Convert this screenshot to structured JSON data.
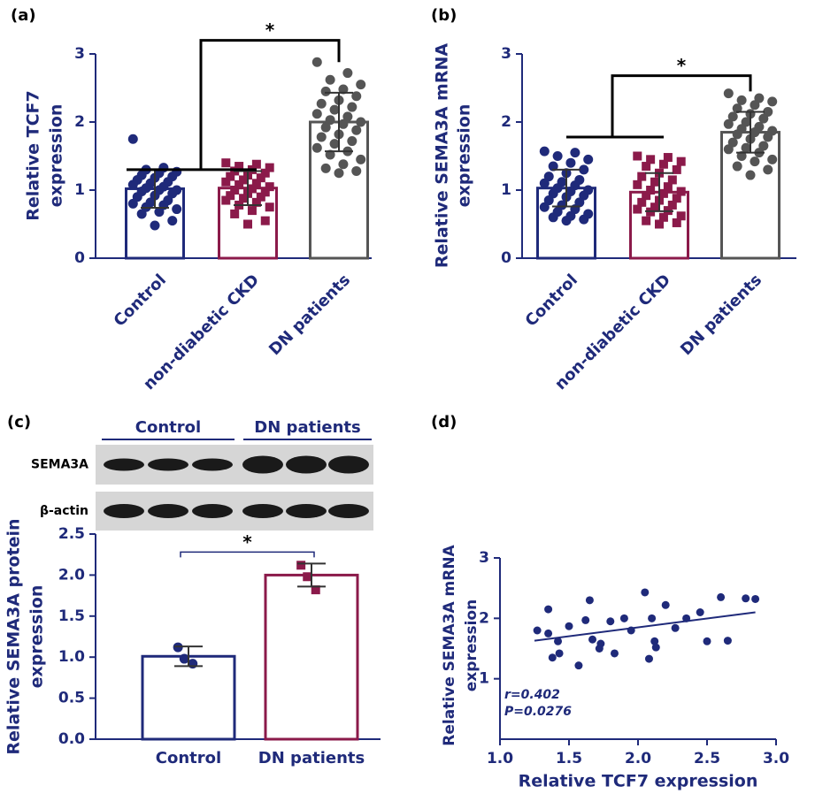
{
  "chart_data": [
    {
      "type": "bar",
      "panel": "(a)",
      "ylabel": [
        "Relative TCF7",
        "expression"
      ],
      "categories": [
        "Control",
        "non-diabetic CKD",
        "DN patients"
      ],
      "values": [
        1.02,
        1.03,
        2.0
      ],
      "errors": [
        0.28,
        0.25,
        0.43
      ],
      "colors": [
        "#1f2a7a",
        "#8b1a4a",
        "#555555"
      ],
      "markers": [
        "circle",
        "square",
        "circle"
      ],
      "points": [
        [
          1.75,
          1.33,
          1.3,
          1.27,
          1.25,
          1.22,
          1.2,
          1.18,
          1.15,
          1.12,
          1.1,
          1.08,
          1.05,
          1.03,
          1.0,
          1.0,
          0.98,
          0.95,
          0.92,
          0.9,
          0.85,
          0.82,
          0.8,
          0.78,
          0.75,
          0.72,
          0.68,
          0.65,
          0.55,
          0.48
        ],
        [
          1.4,
          1.38,
          1.35,
          1.33,
          1.3,
          1.28,
          1.25,
          1.22,
          1.2,
          1.18,
          1.15,
          1.12,
          1.1,
          1.08,
          1.05,
          1.02,
          1.0,
          0.97,
          0.95,
          0.92,
          0.9,
          0.88,
          0.85,
          0.82,
          0.78,
          0.75,
          0.7,
          0.65,
          0.55,
          0.5
        ],
        [
          2.88,
          2.72,
          2.62,
          2.55,
          2.48,
          2.45,
          2.38,
          2.32,
          2.27,
          2.22,
          2.18,
          2.12,
          2.08,
          2.03,
          2.0,
          1.97,
          1.92,
          1.88,
          1.82,
          1.78,
          1.72,
          1.68,
          1.62,
          1.57,
          1.52,
          1.45,
          1.38,
          1.32,
          1.28,
          1.25
        ]
      ],
      "ylim": [
        0,
        3
      ],
      "yticks": [
        0,
        1,
        2,
        3
      ],
      "significance": "*"
    },
    {
      "type": "bar",
      "panel": "(b)",
      "ylabel": [
        "Relative SEMA3A mRNA",
        "expression"
      ],
      "categories": [
        "Control",
        "non-diabetic CKD",
        "DN patients"
      ],
      "values": [
        1.03,
        0.97,
        1.85
      ],
      "errors": [
        0.27,
        0.28,
        0.3
      ],
      "colors": [
        "#1f2a7a",
        "#8b1a4a",
        "#555555"
      ],
      "markers": [
        "circle",
        "square",
        "circle"
      ],
      "points": [
        [
          1.57,
          1.55,
          1.5,
          1.45,
          1.4,
          1.35,
          1.3,
          1.25,
          1.2,
          1.15,
          1.12,
          1.1,
          1.07,
          1.03,
          1.0,
          0.98,
          0.95,
          0.92,
          0.9,
          0.85,
          0.82,
          0.78,
          0.75,
          0.72,
          0.68,
          0.65,
          0.62,
          0.6,
          0.57,
          0.55
        ],
        [
          1.5,
          1.48,
          1.45,
          1.42,
          1.38,
          1.35,
          1.3,
          1.25,
          1.2,
          1.15,
          1.12,
          1.08,
          1.05,
          1.0,
          0.98,
          0.95,
          0.92,
          0.88,
          0.85,
          0.82,
          0.78,
          0.75,
          0.72,
          0.7,
          0.68,
          0.62,
          0.6,
          0.55,
          0.52,
          0.5
        ],
        [
          2.42,
          2.35,
          2.32,
          2.3,
          2.25,
          2.2,
          2.15,
          2.12,
          2.08,
          2.05,
          2.0,
          1.97,
          1.93,
          1.9,
          1.87,
          1.85,
          1.82,
          1.78,
          1.75,
          1.7,
          1.65,
          1.62,
          1.6,
          1.55,
          1.5,
          1.45,
          1.42,
          1.35,
          1.3,
          1.22
        ]
      ],
      "ylim": [
        0,
        3
      ],
      "yticks": [
        0,
        1,
        2,
        3
      ],
      "significance": "*"
    },
    {
      "type": "bar",
      "panel": "(c)",
      "ylabel": [
        "Relative SEMA3A protein",
        "expression"
      ],
      "blot": {
        "groups": [
          "Control",
          "DN patients"
        ],
        "rows": [
          "SEMA3A",
          "β-actin"
        ]
      },
      "categories": [
        "Control",
        "DN patients"
      ],
      "values": [
        1.01,
        2.0
      ],
      "errors": [
        0.12,
        0.14
      ],
      "colors": [
        "#1f2a7a",
        "#8b1a4a"
      ],
      "markers": [
        "circle",
        "square"
      ],
      "points": [
        [
          1.12,
          0.92,
          0.98
        ],
        [
          2.12,
          1.82,
          1.98
        ]
      ],
      "ylim": [
        0,
        2.5
      ],
      "yticks": [
        {
          "value": 0,
          "label": "0.0"
        },
        {
          "value": 0.5,
          "label": "0.5"
        },
        {
          "value": 1,
          "label": "1.0"
        },
        {
          "value": 1.5,
          "label": "1.5"
        },
        {
          "value": 2,
          "label": "2.0"
        },
        {
          "value": 2.5,
          "label": "2.5"
        }
      ],
      "significance": "*"
    },
    {
      "type": "scatter",
      "panel": "(d)",
      "xlabel": "Relative TCF7 expression",
      "ylabel": [
        "Relative SEMA3A mRNA",
        "expression"
      ],
      "color": "#1f2a7a",
      "x": [
        1.27,
        1.35,
        1.35,
        1.38,
        1.42,
        1.43,
        1.5,
        1.57,
        1.62,
        1.65,
        1.67,
        1.72,
        1.73,
        1.8,
        1.83,
        1.9,
        1.95,
        2.05,
        2.08,
        2.1,
        2.12,
        2.13,
        2.2,
        2.27,
        2.35,
        2.45,
        2.5,
        2.6,
        2.65,
        2.78,
        2.85
      ],
      "y": [
        1.8,
        2.15,
        1.75,
        1.35,
        1.62,
        1.42,
        1.87,
        1.22,
        1.97,
        2.3,
        1.65,
        1.5,
        1.58,
        1.95,
        1.42,
        2.0,
        1.8,
        2.43,
        1.33,
        2.0,
        1.62,
        1.52,
        2.22,
        1.84,
        2.0,
        2.1,
        1.62,
        2.35,
        1.63,
        2.33,
        2.32
      ],
      "fit": {
        "x": [
          1.25,
          2.85
        ],
        "y": [
          1.63,
          2.1
        ]
      },
      "annotations": [
        "r=0.402",
        "P=0.0276"
      ],
      "xlim": [
        1.0,
        3.0
      ],
      "xticks": [
        {
          "value": 1,
          "label": "1.0"
        },
        {
          "value": 1.5,
          "label": "1.5"
        },
        {
          "value": 2,
          "label": "2.0"
        },
        {
          "value": 2.5,
          "label": "2.5"
        },
        {
          "value": 3,
          "label": "3.0"
        }
      ],
      "ylim": [
        0,
        3
      ],
      "yticks": [
        1,
        2,
        3
      ]
    }
  ]
}
